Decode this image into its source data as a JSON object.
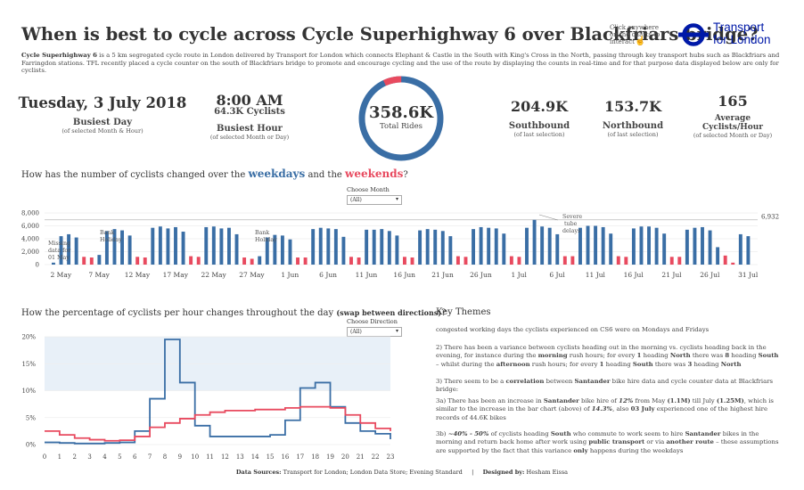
{
  "header": {
    "title": "When is best to cycle across Cycle Superhighway 6 over Blackfriars bridge?",
    "hint": "Click anywhere on the charts to interact",
    "hand_icon": "pointer-hand-icon",
    "logo_icon": "tfl-roundel-icon",
    "logo_line1": "Transport",
    "logo_line2": "for London",
    "brand_color": "#0019a8",
    "intro_bold": "Cycle Superhighway 6",
    "intro_rest": " is a 5 km segregated cycle route in London delivered by Transport for London which connects Elephant & Castle in the South with King's Cross in the North, passing through key transport hubs such as Blackfriars and Farringdon stations. TFL recently placed a cycle counter on the south of Blackfriars bridge to promote and encourage cycling and the use of the route by displaying the counts in real-time and for that purpose data displayed below are only for cyclists."
  },
  "kpis": {
    "busiest_day_value": "Tuesday, 3 July 2018",
    "busiest_day_label": "Busiest Day",
    "busiest_day_note": "(of selected Month & Hour)",
    "busiest_hour_value": "8:00 AM",
    "busiest_hour_count": "64.3K Cyclists",
    "busiest_hour_label": "Busiest Hour",
    "busiest_hour_note": "(of selected Month or Day)",
    "total_value": "358.6K",
    "total_label": "Total Rides",
    "ring_weekend_fraction": 0.07,
    "southbound_value": "204.9K",
    "southbound_label": "Southbound",
    "southbound_note": "(of last selection)",
    "northbound_value": "153.7K",
    "northbound_label": "Northbound",
    "northbound_note": "(of last selection)",
    "avg_value": "165",
    "avg_label_1": "Average",
    "avg_label_2": "Cyclists/Hour",
    "avg_note": "(of selected Month or Day)"
  },
  "bar_section": {
    "question_prefix": "How has the number of cyclists changed over the ",
    "weekdays": "weekdays",
    "and_the": " and the ",
    "weekends": "weekends",
    "question_suffix": "?",
    "control_label": "Choose Month",
    "control_value": "(All)"
  },
  "line_section": {
    "question_main": "How the percentage of cyclists per hour changes throughout the day ",
    "question_paren": "(swap between directions)",
    "question_end": "?",
    "control_label": "Choose Direction",
    "control_value": "(All)"
  },
  "themes": {
    "title": "Key Themes",
    "t1": "congested working days the cyclists experienced on CS6 were on Mondays and Fridays",
    "t2_a": "2) There has been a variance between cyclists heading out in the morning vs. cyclists heading back in the evening, for instance during the ",
    "t2_b": "morning",
    "t2_c": " rush hours; for every ",
    "t2_d": "1",
    "t2_e": " heading ",
    "t2_f": "North",
    "t2_g": " there was ",
    "t2_h": "8",
    "t2_i": " heading ",
    "t2_j": "South",
    "t2_k": " – whilst during the ",
    "t2_l": "afternoon",
    "t2_m": " rush hours; for every ",
    "t2_n": "1",
    "t2_o": " heading ",
    "t2_p": "South",
    "t2_q": " there was ",
    "t2_r": "3",
    "t2_s": " heading ",
    "t2_t": "North",
    "t3_a": "3) There seem to be a ",
    "t3_b": "correlation",
    "t3_c": " between ",
    "t3_d": "Santander",
    "t3_e": " bike hire data and cycle counter data at Blackfriars bridge:",
    "t4_a": "3a) There has been an increase in ",
    "t4_b": "Santander",
    "t4_c": " bike hire of ",
    "t4_d": "12%",
    "t4_e": " from May ",
    "t4_f": "(1.1M)",
    "t4_g": " till July ",
    "t4_h": "(1.25M)",
    "t4_i": ", which is similar to the increase in the bar chart (above) of ",
    "t4_j": "14.3%",
    "t4_k": ", also ",
    "t4_l": "03 July",
    "t4_m": " experienced one of the highest hire records of 44.6K bikes",
    "t5_a": "3b) ",
    "t5_b": "~40% - 50%",
    "t5_c": " of cyclists heading ",
    "t5_d": "South",
    "t5_e": " who commute to work seem to hire ",
    "t5_f": "Santander",
    "t5_g": " bikes in the morning and return back home after work using ",
    "t5_h": "public transport",
    "t5_i": " or via ",
    "t5_j": "another route",
    "t5_k": " – these assumptions are supported by the fact that this variance ",
    "t5_l": "only",
    "t5_m": " happens during the weekdays"
  },
  "footer": {
    "sources_label": "Data Sources:",
    "sources": " Transport for London; London Data Store; Evening Standard",
    "sep": "|",
    "designed_label": "Designed by:",
    "designed": " Hesham Eissa"
  },
  "chart_data": [
    {
      "type": "bar",
      "weekday_color": "#3a6ea5",
      "weekend_color": "#e84a5f",
      "ylim": [
        0,
        8000
      ],
      "yticks": [
        0,
        2000,
        4000,
        6000,
        8000
      ],
      "ytick_labels": [
        "0",
        "2,000",
        "4,000",
        "6,000",
        "8,000"
      ],
      "reference_line": 6932,
      "reference_label": "6,932",
      "xtick_labels": [
        "2 May",
        "7 May",
        "12 May",
        "17 May",
        "22 May",
        "27 May",
        "1 Jun",
        "6 Jun",
        "11 Jun",
        "16 Jun",
        "21 Jun",
        "26 Jun",
        "1 Jul",
        "6 Jul",
        "11 Jul",
        "16 Jul",
        "21 Jul",
        "26 Jul",
        "31 Jul"
      ],
      "annotations": [
        {
          "label": "Missing data for 01 May",
          "day": 0
        },
        {
          "label": "Bank Holiday",
          "day": 6
        },
        {
          "label": "Bank Holiday",
          "day": 27
        },
        {
          "label": "Severe tube delays",
          "day": 62
        }
      ],
      "days": [
        {
          "date": "1 May",
          "value": 300,
          "weekend": false
        },
        {
          "date": "2 May",
          "value": 4400,
          "weekend": false
        },
        {
          "date": "3 May",
          "value": 4700,
          "weekend": false
        },
        {
          "date": "4 May",
          "value": 4200,
          "weekend": false
        },
        {
          "date": "5 May",
          "value": 1200,
          "weekend": true
        },
        {
          "date": "6 May",
          "value": 1100,
          "weekend": true
        },
        {
          "date": "7 May",
          "value": 1500,
          "weekend": false
        },
        {
          "date": "8 May",
          "value": 5200,
          "weekend": false
        },
        {
          "date": "9 May",
          "value": 5500,
          "weekend": false
        },
        {
          "date": "10 May",
          "value": 5300,
          "weekend": false
        },
        {
          "date": "11 May",
          "value": 4500,
          "weekend": false
        },
        {
          "date": "12 May",
          "value": 1200,
          "weekend": true
        },
        {
          "date": "13 May",
          "value": 1100,
          "weekend": true
        },
        {
          "date": "14 May",
          "value": 5700,
          "weekend": false
        },
        {
          "date": "15 May",
          "value": 5900,
          "weekend": false
        },
        {
          "date": "16 May",
          "value": 5600,
          "weekend": false
        },
        {
          "date": "17 May",
          "value": 5800,
          "weekend": false
        },
        {
          "date": "18 May",
          "value": 5100,
          "weekend": false
        },
        {
          "date": "19 May",
          "value": 1300,
          "weekend": true
        },
        {
          "date": "20 May",
          "value": 1200,
          "weekend": true
        },
        {
          "date": "21 May",
          "value": 5800,
          "weekend": false
        },
        {
          "date": "22 May",
          "value": 5900,
          "weekend": false
        },
        {
          "date": "23 May",
          "value": 5600,
          "weekend": false
        },
        {
          "date": "24 May",
          "value": 5700,
          "weekend": false
        },
        {
          "date": "25 May",
          "value": 4700,
          "weekend": false
        },
        {
          "date": "26 May",
          "value": 1100,
          "weekend": true
        },
        {
          "date": "27 May",
          "value": 900,
          "weekend": true
        },
        {
          "date": "28 May",
          "value": 1300,
          "weekend": false
        },
        {
          "date": "29 May",
          "value": 4200,
          "weekend": false
        },
        {
          "date": "30 May",
          "value": 4600,
          "weekend": false
        },
        {
          "date": "31 May",
          "value": 4500,
          "weekend": false
        },
        {
          "date": "1 Jun",
          "value": 3900,
          "weekend": false
        },
        {
          "date": "2 Jun",
          "value": 1100,
          "weekend": true
        },
        {
          "date": "3 Jun",
          "value": 1100,
          "weekend": true
        },
        {
          "date": "4 Jun",
          "value": 5500,
          "weekend": false
        },
        {
          "date": "5 Jun",
          "value": 5700,
          "weekend": false
        },
        {
          "date": "6 Jun",
          "value": 5600,
          "weekend": false
        },
        {
          "date": "7 Jun",
          "value": 5500,
          "weekend": false
        },
        {
          "date": "8 Jun",
          "value": 4300,
          "weekend": false
        },
        {
          "date": "9 Jun",
          "value": 1200,
          "weekend": true
        },
        {
          "date": "10 Jun",
          "value": 1100,
          "weekend": true
        },
        {
          "date": "11 Jun",
          "value": 5400,
          "weekend": false
        },
        {
          "date": "12 Jun",
          "value": 5400,
          "weekend": false
        },
        {
          "date": "13 Jun",
          "value": 5500,
          "weekend": false
        },
        {
          "date": "14 Jun",
          "value": 5200,
          "weekend": false
        },
        {
          "date": "15 Jun",
          "value": 4500,
          "weekend": false
        },
        {
          "date": "16 Jun",
          "value": 1200,
          "weekend": true
        },
        {
          "date": "17 Jun",
          "value": 1100,
          "weekend": true
        },
        {
          "date": "18 Jun",
          "value": 5300,
          "weekend": false
        },
        {
          "date": "19 Jun",
          "value": 5500,
          "weekend": false
        },
        {
          "date": "20 Jun",
          "value": 5400,
          "weekend": false
        },
        {
          "date": "21 Jun",
          "value": 5200,
          "weekend": false
        },
        {
          "date": "22 Jun",
          "value": 4400,
          "weekend": false
        },
        {
          "date": "23 Jun",
          "value": 1300,
          "weekend": true
        },
        {
          "date": "24 Jun",
          "value": 1200,
          "weekend": true
        },
        {
          "date": "25 Jun",
          "value": 5500,
          "weekend": false
        },
        {
          "date": "26 Jun",
          "value": 5800,
          "weekend": false
        },
        {
          "date": "27 Jun",
          "value": 5700,
          "weekend": false
        },
        {
          "date": "28 Jun",
          "value": 5600,
          "weekend": false
        },
        {
          "date": "29 Jun",
          "value": 4800,
          "weekend": false
        },
        {
          "date": "30 Jun",
          "value": 1300,
          "weekend": true
        },
        {
          "date": "1 Jul",
          "value": 1200,
          "weekend": true
        },
        {
          "date": "2 Jul",
          "value": 5700,
          "weekend": false
        },
        {
          "date": "3 Jul",
          "value": 6932,
          "weekend": false
        },
        {
          "date": "4 Jul",
          "value": 5900,
          "weekend": false
        },
        {
          "date": "5 Jul",
          "value": 5700,
          "weekend": false
        },
        {
          "date": "6 Jul",
          "value": 4700,
          "weekend": false
        },
        {
          "date": "7 Jul",
          "value": 1300,
          "weekend": true
        },
        {
          "date": "8 Jul",
          "value": 1300,
          "weekend": true
        },
        {
          "date": "9 Jul",
          "value": 5700,
          "weekend": false
        },
        {
          "date": "10 Jul",
          "value": 6000,
          "weekend": false
        },
        {
          "date": "11 Jul",
          "value": 6000,
          "weekend": false
        },
        {
          "date": "12 Jul",
          "value": 5800,
          "weekend": false
        },
        {
          "date": "13 Jul",
          "value": 4800,
          "weekend": false
        },
        {
          "date": "14 Jul",
          "value": 1300,
          "weekend": true
        },
        {
          "date": "15 Jul",
          "value": 1200,
          "weekend": true
        },
        {
          "date": "16 Jul",
          "value": 5600,
          "weekend": false
        },
        {
          "date": "17 Jul",
          "value": 5900,
          "weekend": false
        },
        {
          "date": "18 Jul",
          "value": 5900,
          "weekend": false
        },
        {
          "date": "19 Jul",
          "value": 5700,
          "weekend": false
        },
        {
          "date": "20 Jul",
          "value": 4800,
          "weekend": false
        },
        {
          "date": "21 Jul",
          "value": 1200,
          "weekend": true
        },
        {
          "date": "22 Jul",
          "value": 1200,
          "weekend": true
        },
        {
          "date": "23 Jul",
          "value": 5400,
          "weekend": false
        },
        {
          "date": "24 Jul",
          "value": 5700,
          "weekend": false
        },
        {
          "date": "25 Jul",
          "value": 5800,
          "weekend": false
        },
        {
          "date": "26 Jul",
          "value": 5300,
          "weekend": false
        },
        {
          "date": "27 Jul",
          "value": 2700,
          "weekend": false
        },
        {
          "date": "28 Jul",
          "value": 1400,
          "weekend": true
        },
        {
          "date": "29 Jul",
          "value": 300,
          "weekend": true
        },
        {
          "date": "30 Jul",
          "value": 4700,
          "weekend": false
        },
        {
          "date": "31 Jul",
          "value": 4400,
          "weekend": false
        }
      ]
    },
    {
      "type": "line",
      "x": [
        0,
        1,
        2,
        3,
        4,
        5,
        6,
        7,
        8,
        9,
        10,
        11,
        12,
        13,
        14,
        15,
        16,
        17,
        18,
        19,
        20,
        21,
        22,
        23
      ],
      "xlim": [
        0,
        23
      ],
      "ylim": [
        0,
        20
      ],
      "yticks": [
        0,
        5,
        10,
        15,
        20
      ],
      "ytick_labels": [
        "0%",
        "5%",
        "10%",
        "15%",
        "20%"
      ],
      "band": [
        10,
        20
      ],
      "band_color": "#e8f0f8",
      "series": [
        {
          "color": "#3a6ea5",
          "values": [
            0.4,
            0.3,
            0.2,
            0.2,
            0.3,
            0.4,
            2.5,
            8.5,
            19.5,
            11.5,
            3.5,
            1.5,
            1.5,
            1.5,
            1.5,
            1.8,
            4.5,
            10.5,
            11.5,
            7.0,
            4.0,
            2.5,
            2.0,
            1.0
          ]
        },
        {
          "color": "#e84a5f",
          "values": [
            2.5,
            1.8,
            1.2,
            0.9,
            0.7,
            0.8,
            1.5,
            3.2,
            4.0,
            4.8,
            5.5,
            6.0,
            6.3,
            6.3,
            6.5,
            6.5,
            6.8,
            7.0,
            7.0,
            6.8,
            5.5,
            4.0,
            3.0,
            2.5
          ]
        }
      ]
    }
  ]
}
